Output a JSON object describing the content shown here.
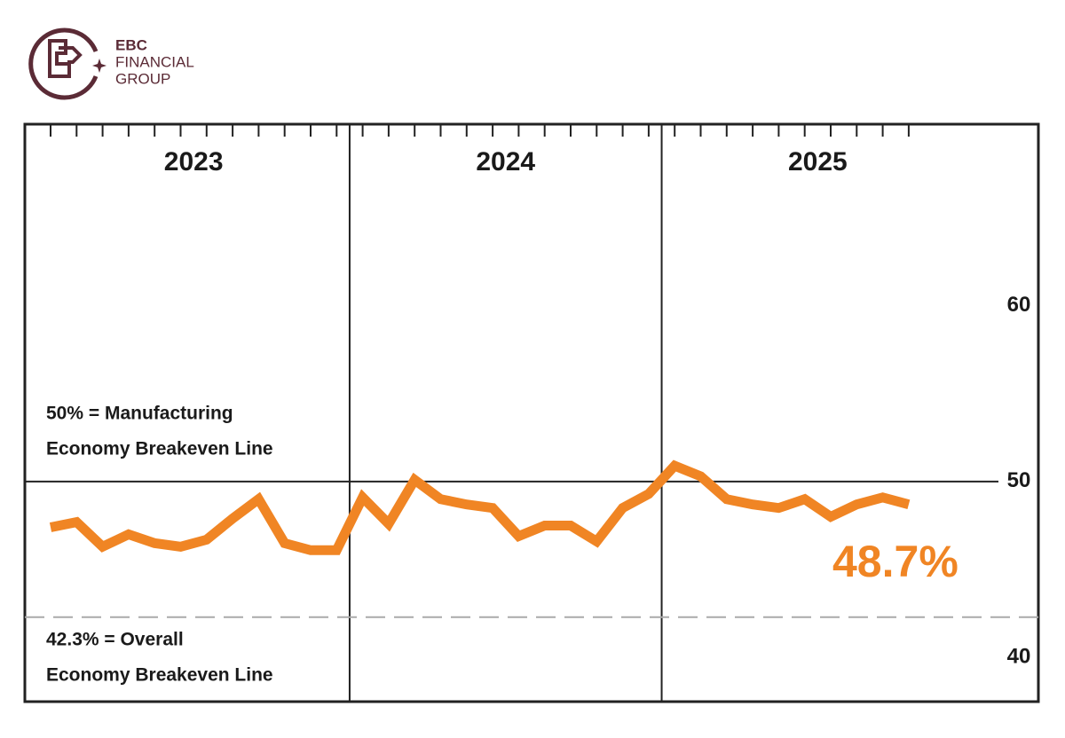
{
  "logo": {
    "line1": "EBC",
    "line2": "FINANCIAL",
    "line3": "GROUP"
  },
  "chart_data": {
    "type": "line",
    "x_groups": [
      "2023",
      "2024",
      "2025"
    ],
    "categories": [
      null,
      null,
      null,
      null,
      null,
      null,
      null,
      null,
      null,
      null,
      null,
      null,
      null,
      null,
      null,
      null,
      null,
      null,
      null,
      null,
      null,
      null,
      null,
      null,
      null,
      null,
      null,
      null,
      null,
      null,
      null,
      null,
      null,
      null
    ],
    "series": [
      {
        "color": "#f08524",
        "values": [
          47.4,
          47.7,
          46.3,
          47.0,
          46.5,
          46.3,
          46.7,
          47.9,
          49.0,
          46.5,
          46.1,
          46.1,
          49.1,
          47.6,
          50.1,
          49.0,
          48.7,
          48.5,
          46.9,
          47.5,
          47.5,
          46.6,
          48.5,
          49.3,
          50.9,
          50.3,
          49.0,
          48.7,
          48.5,
          49.0,
          48.0,
          48.7,
          49.1,
          48.7
        ],
        "value_labels": [
          null,
          null,
          null,
          null,
          null,
          null,
          null,
          null,
          null,
          null,
          null,
          null,
          null,
          null,
          null,
          null,
          null,
          null,
          null,
          null,
          null,
          null,
          null,
          null,
          null,
          null,
          null,
          null,
          null,
          null,
          null,
          null,
          null,
          "48.7%"
        ]
      }
    ],
    "ylim": [
      37.5,
      70.3
    ],
    "yticks": [
      40,
      50,
      60
    ],
    "reference_lines": [
      {
        "value": 50,
        "style": "solid",
        "label": [
          "50% = Manufacturing",
          "Economy Breakeven Line"
        ]
      },
      {
        "value": 42.3,
        "style": "dashed",
        "label": [
          "42.3% = Overall",
          "Economy Breakeven Line"
        ]
      }
    ]
  }
}
